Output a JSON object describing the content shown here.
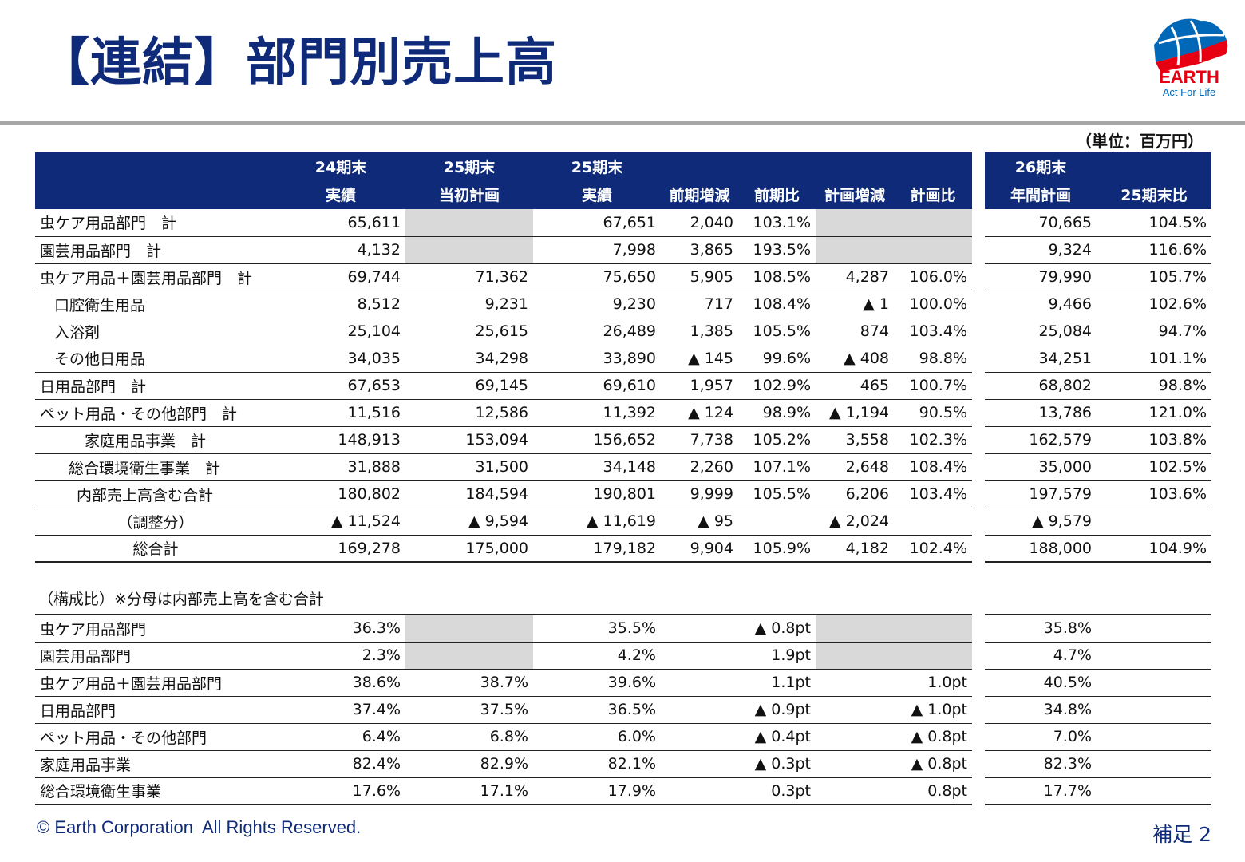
{
  "title": "【連結】部門別売上高",
  "logo": {
    "text": "EARTH",
    "tagline": "Act For Life",
    "colors": {
      "red": "#e60012",
      "blue": "#0068b7"
    }
  },
  "unit": "（単位：百万円）",
  "header": {
    "row1": [
      "",
      "24期末",
      "25期末",
      "25期末",
      "",
      "",
      "",
      "",
      "26期末",
      ""
    ],
    "row2": [
      "",
      "実績",
      "当初計画",
      "実績",
      "前期増減",
      "前期比",
      "計画増減",
      "計画比",
      "年間計画",
      "25期末比"
    ]
  },
  "rows": [
    {
      "label": "虫ケア用品部門　計",
      "cells": [
        "65,611",
        "",
        "67,651",
        "2,040",
        "103.1%",
        "",
        "",
        "70,665",
        "104.5%"
      ]
    },
    {
      "label": "園芸用品部門　計",
      "cells": [
        "4,132",
        "",
        "7,998",
        "3,865",
        "193.5%",
        "",
        "",
        "9,324",
        "116.6%"
      ]
    },
    {
      "label": "虫ケア用品＋園芸用品部門　計",
      "cells": [
        "69,744",
        "71,362",
        "75,650",
        "5,905",
        "108.5%",
        "4,287",
        "106.0%",
        "79,990",
        "105.7%"
      ]
    },
    {
      "label": "口腔衛生用品",
      "cells": [
        "8,512",
        "9,231",
        "9,230",
        "717",
        "108.4%",
        "▲ 1",
        "100.0%",
        "9,466",
        "102.6%"
      ]
    },
    {
      "label": "入浴剤",
      "cells": [
        "25,104",
        "25,615",
        "26,489",
        "1,385",
        "105.5%",
        "874",
        "103.4%",
        "25,084",
        "94.7%"
      ]
    },
    {
      "label": "その他日用品",
      "cells": [
        "34,035",
        "34,298",
        "33,890",
        "▲ 145",
        "99.6%",
        "▲ 408",
        "98.8%",
        "34,251",
        "101.1%"
      ]
    },
    {
      "label": "日用品部門　計",
      "cells": [
        "67,653",
        "69,145",
        "69,610",
        "1,957",
        "102.9%",
        "465",
        "100.7%",
        "68,802",
        "98.8%"
      ]
    },
    {
      "label": "ペット用品・その他部門　計",
      "cells": [
        "11,516",
        "12,586",
        "11,392",
        "▲ 124",
        "98.9%",
        "▲ 1,194",
        "90.5%",
        "13,786",
        "121.0%"
      ]
    },
    {
      "label": "家庭用品事業　計",
      "cells": [
        "148,913",
        "153,094",
        "156,652",
        "7,738",
        "105.2%",
        "3,558",
        "102.3%",
        "162,579",
        "103.8%"
      ]
    },
    {
      "label": "総合環境衛生事業　計",
      "cells": [
        "31,888",
        "31,500",
        "34,148",
        "2,260",
        "107.1%",
        "2,648",
        "108.4%",
        "35,000",
        "102.5%"
      ]
    },
    {
      "label": "内部売上高含む合計",
      "cells": [
        "180,802",
        "184,594",
        "190,801",
        "9,999",
        "105.5%",
        "6,206",
        "103.4%",
        "197,579",
        "103.6%"
      ]
    },
    {
      "label": "（調整分）",
      "cells": [
        "▲ 11,524",
        "▲ 9,594",
        "▲ 11,619",
        "▲ 95",
        "",
        "▲ 2,024",
        "",
        "▲ 9,579",
        ""
      ]
    },
    {
      "label": "総合計",
      "cells": [
        "169,278",
        "175,000",
        "179,182",
        "9,904",
        "105.9%",
        "4,182",
        "102.4%",
        "188,000",
        "104.9%"
      ]
    }
  ],
  "composition_note": "（構成比）※分母は内部売上高を含む合計",
  "composition": [
    {
      "label": "虫ケア用品部門",
      "cells": [
        "36.3%",
        "",
        "35.5%",
        "▲ 0.8pt",
        "",
        "35.8%"
      ]
    },
    {
      "label": "園芸用品部門",
      "cells": [
        "2.3%",
        "",
        "4.2%",
        "1.9pt",
        "",
        "4.7%"
      ]
    },
    {
      "label": "虫ケア用品＋園芸用品部門",
      "cells": [
        "38.6%",
        "38.7%",
        "39.6%",
        "1.1pt",
        "1.0pt",
        "40.5%"
      ]
    },
    {
      "label": "日用品部門",
      "cells": [
        "37.4%",
        "37.5%",
        "36.5%",
        "▲ 0.9pt",
        "▲ 1.0pt",
        "34.8%"
      ]
    },
    {
      "label": "ペット用品・その他部門",
      "cells": [
        "6.4%",
        "6.8%",
        "6.0%",
        "▲ 0.4pt",
        "▲ 0.8pt",
        "7.0%"
      ]
    },
    {
      "label": "家庭用品事業",
      "cells": [
        "82.4%",
        "82.9%",
        "82.1%",
        "▲ 0.3pt",
        "▲ 0.8pt",
        "82.3%"
      ]
    },
    {
      "label": "総合環境衛生事業",
      "cells": [
        "17.6%",
        "17.1%",
        "17.9%",
        "0.3pt",
        "0.8pt",
        "17.7%"
      ]
    }
  ],
  "footer": {
    "copyright": "© Earth Corporation  All Rights Reserved.",
    "page": "補足 2"
  }
}
